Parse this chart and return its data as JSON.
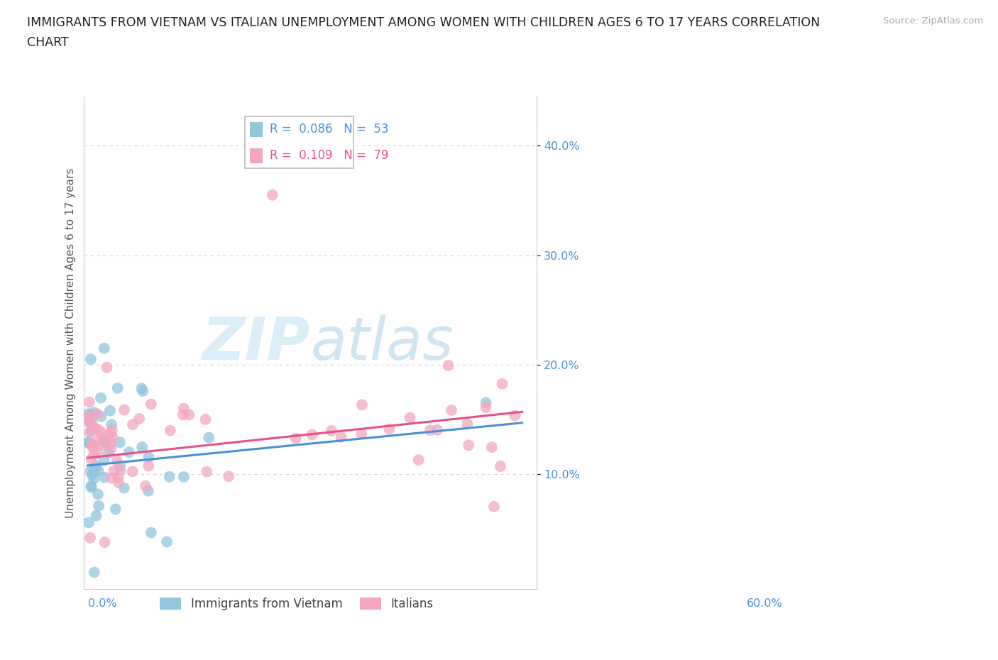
{
  "title_line1": "IMMIGRANTS FROM VIETNAM VS ITALIAN UNEMPLOYMENT AMONG WOMEN WITH CHILDREN AGES 6 TO 17 YEARS CORRELATION",
  "title_line2": "CHART",
  "source": "Source: ZipAtlas.com",
  "ylabel": "Unemployment Among Women with Children Ages 6 to 17 years",
  "vietnam_color": "#92C5DE",
  "italian_color": "#F4A6C0",
  "trendline_vietnam_color": "#4A90D9",
  "trendline_italian_color": "#E8508A",
  "R_vietnam": 0.086,
  "N_vietnam": 53,
  "R_italian": 0.109,
  "N_italian": 79,
  "background_color": "#ffffff",
  "grid_color": "#cccccc",
  "axis_color": "#cccccc",
  "title_color": "#222222",
  "source_color": "#aaaaaa",
  "ylabel_color": "#555555",
  "tick_color": "#4A90D9",
  "legend_label_vietnam": "Immigrants from Vietnam",
  "legend_label_italian": "Italians",
  "watermark_color": "#daeef8"
}
